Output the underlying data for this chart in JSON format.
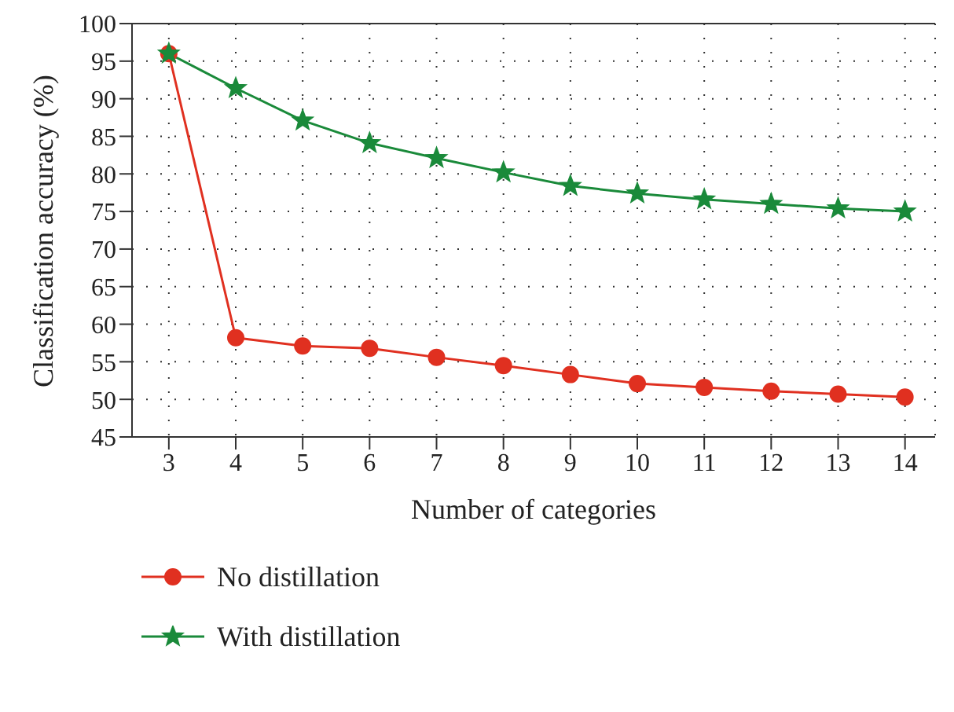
{
  "chart_data": {
    "type": "line",
    "xlabel": "Number of categories",
    "ylabel": "Classification accuracy (%)",
    "x": [
      3,
      4,
      5,
      6,
      7,
      8,
      9,
      10,
      11,
      12,
      13,
      14
    ],
    "series": [
      {
        "name": "No distillation",
        "color": "#e03020",
        "marker": "circle",
        "values": [
          96,
          58.2,
          57.1,
          56.8,
          55.6,
          54.5,
          53.3,
          52.1,
          51.6,
          51.1,
          50.7,
          50.3
        ]
      },
      {
        "name": "With distillation",
        "color": "#1a8a3a",
        "marker": "star",
        "values": [
          96,
          91.4,
          87.1,
          84.1,
          82.1,
          80.2,
          78.4,
          77.4,
          76.6,
          76.0,
          75.4,
          75.0
        ]
      }
    ],
    "xlim": [
      2.45,
      14.45
    ],
    "xticks": [
      3,
      4,
      5,
      6,
      7,
      8,
      9,
      10,
      11,
      12,
      13,
      14
    ],
    "ylim": [
      45,
      100
    ],
    "yticks": [
      45,
      50,
      55,
      60,
      65,
      70,
      75,
      80,
      85,
      90,
      95,
      100
    ],
    "grid": true,
    "legend": "bottom left",
    "line_style": "solid"
  }
}
